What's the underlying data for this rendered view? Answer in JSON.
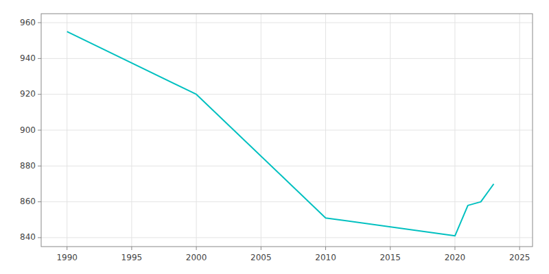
{
  "chart_data": {
    "type": "line",
    "x": [
      1990,
      2000,
      2010,
      2020,
      2021,
      2022,
      2023
    ],
    "values": [
      955,
      920,
      851,
      841,
      858,
      860,
      870
    ],
    "color": "#00C0C0",
    "xlim": [
      1988,
      2026
    ],
    "ylim": [
      835,
      965
    ],
    "xticks": [
      1990,
      1995,
      2000,
      2005,
      2010,
      2015,
      2020,
      2025
    ],
    "yticks": [
      840,
      860,
      880,
      900,
      920,
      940,
      960
    ],
    "grid": true
  }
}
